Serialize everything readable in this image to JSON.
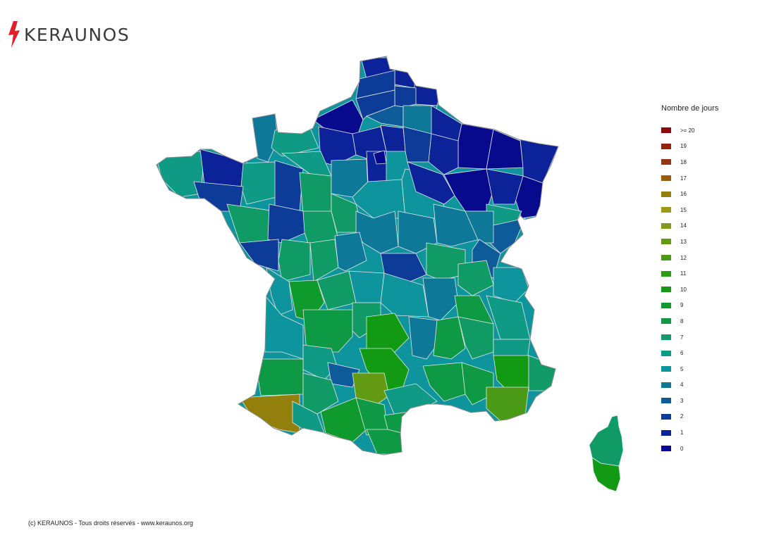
{
  "brand": {
    "name": "KERAUNOS",
    "logo_color": "#e0202a"
  },
  "legend": {
    "title": "Nombre de jours",
    "items": [
      {
        "label": ">= 20",
        "color": "#8b0a0a"
      },
      {
        "label": "19",
        "color": "#962010"
      },
      {
        "label": "18",
        "color": "#973510"
      },
      {
        "label": "17",
        "color": "#9a5a12"
      },
      {
        "label": "16",
        "color": "#93800c"
      },
      {
        "label": "15",
        "color": "#9c9a14"
      },
      {
        "label": "14",
        "color": "#849a16"
      },
      {
        "label": "13",
        "color": "#639a14"
      },
      {
        "label": "12",
        "color": "#4a9a18"
      },
      {
        "label": "11",
        "color": "#2e9a1a"
      },
      {
        "label": "10",
        "color": "#129a14"
      },
      {
        "label": "9",
        "color": "#0e9a2c"
      },
      {
        "label": "8",
        "color": "#0e9a44"
      },
      {
        "label": "7",
        "color": "#109a66"
      },
      {
        "label": "6",
        "color": "#0f9a86"
      },
      {
        "label": "5",
        "color": "#0e949c"
      },
      {
        "label": "4",
        "color": "#0d7898"
      },
      {
        "label": "3",
        "color": "#0d5b98"
      },
      {
        "label": "2",
        "color": "#0c3c98"
      },
      {
        "label": "1",
        "color": "#0b2298"
      },
      {
        "label": "0",
        "color": "#080a8e"
      }
    ]
  },
  "footer": {
    "text": "(c) KERAUNOS - Tous droits réservés - www.keraunos.org"
  }
}
